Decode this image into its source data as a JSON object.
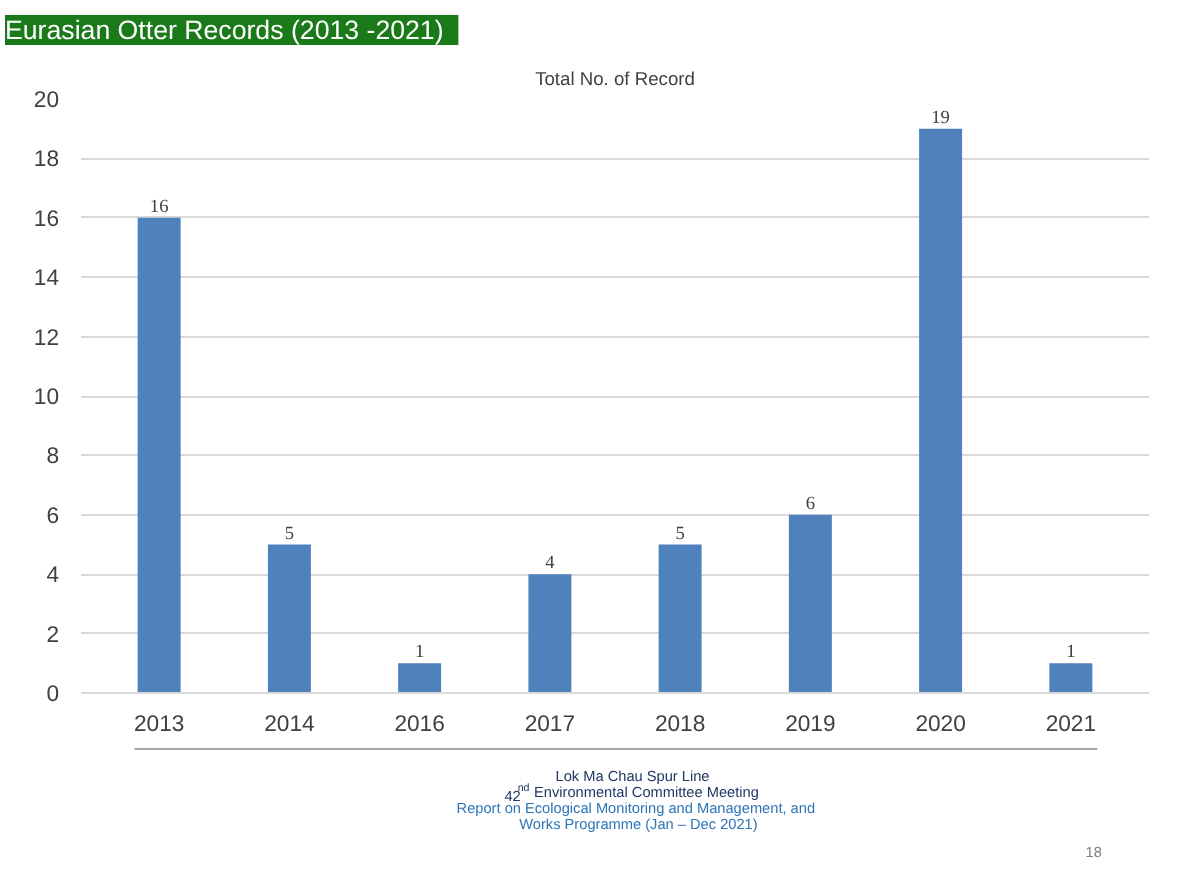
{
  "chart_data": {
    "type": "bar",
    "title": "Eurasian Otter Records (2013 -2021)",
    "subtitle": "Total No. of Record",
    "categories": [
      "2013",
      "2014",
      "2016",
      "2017",
      "2018",
      "2019",
      "2020",
      "2021"
    ],
    "values": [
      16,
      5,
      1,
      4,
      5,
      6,
      19,
      1
    ],
    "color": "#4f81bd",
    "data_labels": true,
    "ylim": [
      0,
      20
    ],
    "yticks": [
      0,
      2,
      4,
      6,
      8,
      10,
      12,
      14,
      16,
      18,
      20
    ],
    "grid": "y",
    "annotations": [
      "Lok Ma Chau Spur Line",
      "42$^{nd}$ Environmental Committee Meeting",
      "Report on Ecological Monitoring and Management, and",
      "Works Programme (Jan – Dec 2021)",
      "18"
    ]
  }
}
